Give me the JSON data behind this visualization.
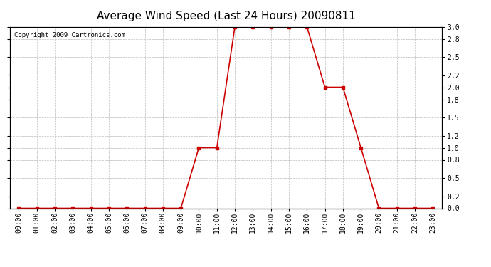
{
  "title": "Average Wind Speed (Last 24 Hours) 20090811",
  "copyright_text": "Copyright 2009 Cartronics.com",
  "hours": [
    0,
    1,
    2,
    3,
    4,
    5,
    6,
    7,
    8,
    9,
    10,
    11,
    12,
    13,
    14,
    15,
    16,
    17,
    18,
    19,
    20,
    21,
    22,
    23
  ],
  "x_labels": [
    "00:00",
    "01:00",
    "02:00",
    "03:00",
    "04:00",
    "05:00",
    "06:00",
    "07:00",
    "08:00",
    "09:00",
    "10:00",
    "11:00",
    "12:00",
    "13:00",
    "14:00",
    "15:00",
    "16:00",
    "17:00",
    "18:00",
    "19:00",
    "20:00",
    "21:00",
    "22:00",
    "23:00"
  ],
  "values": [
    0.0,
    0.0,
    0.0,
    0.0,
    0.0,
    0.0,
    0.0,
    0.0,
    0.0,
    0.0,
    1.0,
    1.0,
    3.0,
    3.0,
    3.0,
    3.0,
    3.0,
    2.0,
    2.0,
    1.0,
    0.0,
    0.0,
    0.0,
    0.0
  ],
  "line_color": "#cc0000",
  "marker": "s",
  "marker_size": 2.5,
  "marker_color": "#cc0000",
  "bg_color": "#ffffff",
  "plot_bg_color": "#ffffff",
  "grid_color": "#bbbbbb",
  "grid_style": "--",
  "ylim": [
    0.0,
    3.0
  ],
  "yticks": [
    0.0,
    0.2,
    0.5,
    0.8,
    1.0,
    1.2,
    1.5,
    1.8,
    2.0,
    2.2,
    2.5,
    2.8,
    3.0
  ],
  "title_fontsize": 11,
  "tick_fontsize": 7,
  "copyright_fontsize": 6.5,
  "line_width": 1.2
}
